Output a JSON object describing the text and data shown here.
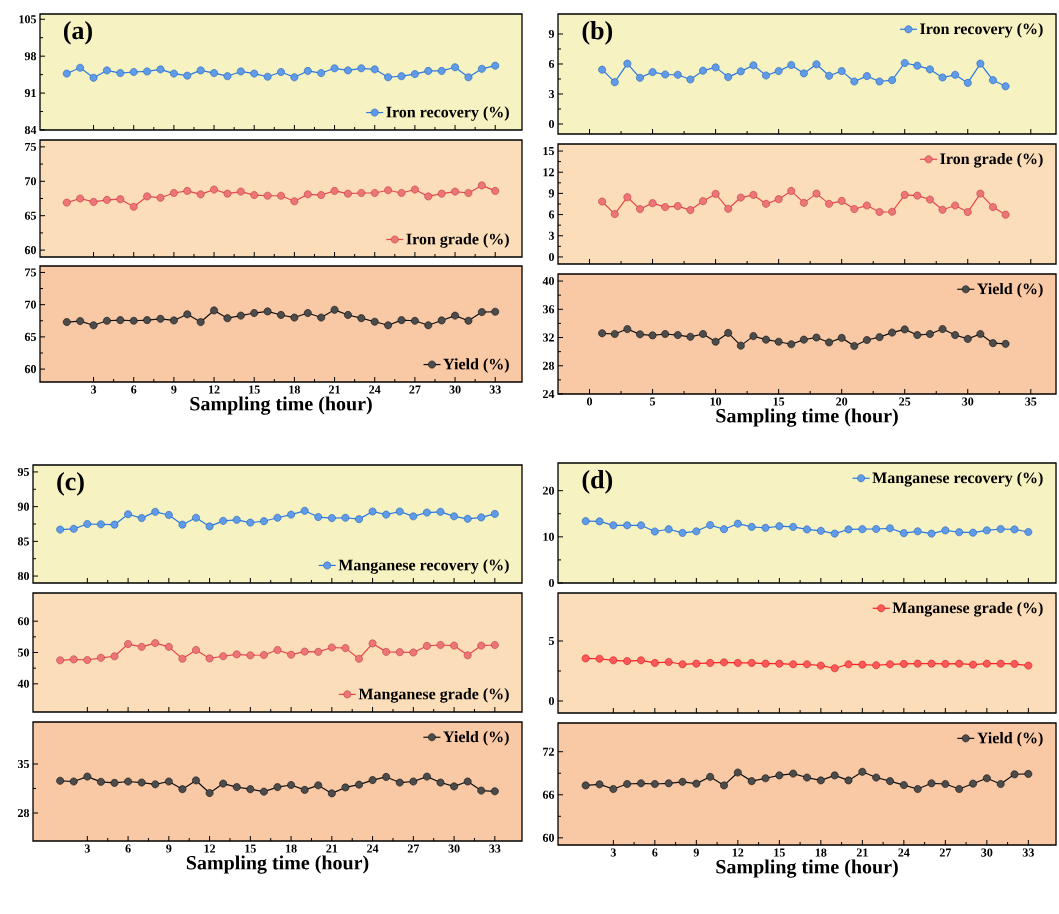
{
  "chart_data": [
    {
      "type": "line",
      "x": [
        1,
        2,
        3,
        4,
        5,
        6,
        7,
        8,
        9,
        10,
        11,
        12,
        13,
        14,
        15,
        16,
        17,
        18,
        19,
        20,
        21,
        22,
        23,
        24,
        25,
        26,
        27,
        28,
        29,
        30,
        31,
        32,
        33
      ],
      "series": [
        {
          "name": "Iron recovery (%)",
          "color": "#2a7ae2",
          "values": [
            94.7,
            95.8,
            93.9,
            95.3,
            94.8,
            95.0,
            95.1,
            95.5,
            94.7,
            94.3,
            95.3,
            94.8,
            94.2,
            95.1,
            94.7,
            94.1,
            95.0,
            94.0,
            95.2,
            94.8,
            95.7,
            95.3,
            95.7,
            95.5,
            94.0,
            94.2,
            94.6,
            95.2,
            95.2,
            95.9,
            94.0,
            95.6,
            96.2
          ]
        }
      ],
      "xlim": [
        -1,
        35
      ],
      "xticks": [
        3,
        6,
        9,
        12,
        15,
        18,
        21,
        24,
        27,
        30,
        33
      ],
      "ylim": [
        84,
        106
      ],
      "yticks": [
        84,
        91,
        98,
        105
      ],
      "tick_labels": "y",
      "legend": "bottom right",
      "marker": "circle",
      "line_style": "solid",
      "annotations": [
        "(a)"
      ]
    },
    {
      "type": "line",
      "x": [
        1,
        2,
        3,
        4,
        5,
        6,
        7,
        8,
        9,
        10,
        11,
        12,
        13,
        14,
        15,
        16,
        17,
        18,
        19,
        20,
        21,
        22,
        23,
        24,
        25,
        26,
        27,
        28,
        29,
        30,
        31,
        32,
        33
      ],
      "series": [
        {
          "name": "Iron grade (%)",
          "color": "#e8474a",
          "values": [
            66.9,
            67.5,
            67.0,
            67.3,
            67.4,
            66.3,
            67.8,
            67.6,
            68.3,
            68.6,
            68.1,
            68.8,
            68.2,
            68.5,
            68.0,
            67.9,
            67.9,
            67.1,
            68.1,
            68.0,
            68.6,
            68.2,
            68.3,
            68.3,
            68.7,
            68.3,
            68.8,
            67.8,
            68.2,
            68.5,
            68.3,
            69.4,
            68.6
          ]
        }
      ],
      "xlim": [
        -1,
        35
      ],
      "xticks": [
        3,
        6,
        9,
        12,
        15,
        18,
        21,
        24,
        27,
        30,
        33
      ],
      "ylim": [
        59,
        76
      ],
      "yticks": [
        60,
        65,
        70,
        75
      ],
      "tick_labels": "y",
      "legend": "bottom right",
      "marker": "circle",
      "line_style": "solid"
    },
    {
      "type": "line",
      "x": [
        1,
        2,
        3,
        4,
        5,
        6,
        7,
        8,
        9,
        10,
        11,
        12,
        13,
        14,
        15,
        16,
        17,
        18,
        19,
        20,
        21,
        22,
        23,
        24,
        25,
        26,
        27,
        28,
        29,
        30,
        31,
        32,
        33
      ],
      "series": [
        {
          "name": "Yield (%)",
          "color": "#111111",
          "values": [
            67.3,
            67.45,
            66.8,
            67.5,
            67.6,
            67.5,
            67.6,
            67.8,
            67.55,
            68.5,
            67.3,
            69.1,
            67.9,
            68.3,
            68.7,
            68.95,
            68.4,
            68.0,
            68.7,
            68.0,
            69.2,
            68.4,
            67.9,
            67.35,
            66.8,
            67.6,
            67.5,
            66.8,
            67.55,
            68.3,
            67.5,
            68.85,
            68.9
          ]
        }
      ],
      "xlim": [
        -1,
        35
      ],
      "xticks": [
        3,
        6,
        9,
        12,
        15,
        18,
        21,
        24,
        27,
        30,
        33
      ],
      "ylim": [
        58,
        76
      ],
      "yticks": [
        60,
        65,
        70,
        75
      ],
      "legend": "bottom right",
      "marker": "circle",
      "line_style": "solid",
      "xlabel": "Sampling time (hour)"
    },
    {
      "type": "line",
      "x": [
        1,
        2,
        3,
        4,
        5,
        6,
        7,
        8,
        9,
        10,
        11,
        12,
        13,
        14,
        15,
        16,
        17,
        18,
        19,
        20,
        21,
        22,
        23,
        24,
        25,
        26,
        27,
        28,
        29,
        30,
        31,
        32,
        33
      ],
      "series": [
        {
          "name": "Iron recovery (%)",
          "color": "#2a7ae2",
          "values": [
            5.43,
            4.18,
            6.04,
            4.62,
            5.19,
            4.95,
            4.92,
            4.45,
            5.33,
            5.66,
            4.69,
            5.26,
            5.87,
            4.85,
            5.29,
            5.9,
            5.06,
            5.97,
            4.82,
            5.29,
            4.25,
            4.79,
            4.25,
            4.38,
            6.1,
            5.83,
            5.46,
            4.65,
            4.92,
            4.11,
            6.04,
            4.38,
            3.77
          ]
        }
      ],
      "xlim": [
        -2.5,
        37
      ],
      "xticks": [
        0,
        5,
        10,
        15,
        20,
        25,
        30,
        35
      ],
      "ylim": [
        -1,
        11
      ],
      "yticks": [
        0,
        3,
        6,
        9
      ],
      "tick_labels": "y",
      "legend": "top right",
      "marker": "circle",
      "line_style": "solid",
      "annotations": [
        "(b)"
      ]
    },
    {
      "type": "line",
      "x": [
        1,
        2,
        3,
        4,
        5,
        6,
        7,
        8,
        9,
        10,
        11,
        12,
        13,
        14,
        15,
        16,
        17,
        18,
        19,
        20,
        21,
        22,
        23,
        24,
        25,
        26,
        27,
        28,
        29,
        30,
        31,
        32,
        33
      ],
      "series": [
        {
          "name": "Iron grade (%)",
          "color": "#e8474a",
          "values": [
            7.85,
            6.07,
            8.46,
            6.78,
            7.62,
            7.06,
            7.2,
            6.64,
            7.9,
            8.93,
            6.82,
            8.41,
            8.79,
            7.52,
            8.18,
            9.35,
            7.66,
            8.97,
            7.52,
            7.94,
            6.78,
            7.29,
            6.36,
            6.4,
            8.79,
            8.69,
            8.13,
            6.68,
            7.29,
            6.36,
            8.97,
            7.06,
            5.98
          ]
        }
      ],
      "xlim": [
        -2.5,
        37
      ],
      "xticks": [
        0,
        5,
        10,
        15,
        20,
        25,
        30,
        35
      ],
      "ylim": [
        -1,
        16
      ],
      "yticks": [
        0,
        3,
        6,
        9,
        12,
        15
      ],
      "tick_labels": "y",
      "legend": "top right",
      "marker": "circle",
      "line_style": "solid"
    },
    {
      "type": "line",
      "x": [
        1,
        2,
        3,
        4,
        5,
        6,
        7,
        8,
        9,
        10,
        11,
        12,
        13,
        14,
        15,
        16,
        17,
        18,
        19,
        20,
        21,
        22,
        23,
        24,
        25,
        26,
        27,
        28,
        29,
        30,
        31,
        32,
        33
      ],
      "series": [
        {
          "name": "Yield (%)",
          "color": "#111111",
          "values": [
            32.6,
            32.5,
            33.2,
            32.45,
            32.3,
            32.5,
            32.35,
            32.1,
            32.5,
            31.4,
            32.65,
            30.85,
            32.2,
            31.7,
            31.4,
            31.05,
            31.7,
            32.0,
            31.3,
            31.95,
            30.8,
            31.65,
            32.05,
            32.7,
            33.15,
            32.35,
            32.5,
            33.2,
            32.35,
            31.8,
            32.5,
            31.2,
            31.1
          ]
        }
      ],
      "xlim": [
        -2.5,
        37
      ],
      "xticks": [
        0,
        5,
        10,
        15,
        20,
        25,
        30,
        35
      ],
      "ylim": [
        24,
        41
      ],
      "yticks": [
        24,
        28,
        32,
        36,
        40
      ],
      "legend": "top right",
      "marker": "circle",
      "line_style": "solid",
      "xlabel": "Sampling time (hour)"
    },
    {
      "type": "line",
      "x": [
        1,
        2,
        3,
        4,
        5,
        6,
        7,
        8,
        9,
        10,
        11,
        12,
        13,
        14,
        15,
        16,
        17,
        18,
        19,
        20,
        21,
        22,
        23,
        24,
        25,
        26,
        27,
        28,
        29,
        30,
        31,
        32,
        33
      ],
      "series": [
        {
          "name": "Manganese recovery (%)",
          "color": "#2a7ae2",
          "values": [
            86.7,
            86.8,
            87.5,
            87.45,
            87.4,
            88.9,
            88.35,
            89.25,
            88.8,
            87.4,
            88.4,
            87.15,
            87.95,
            88.1,
            87.7,
            87.9,
            88.4,
            88.85,
            89.4,
            88.5,
            88.35,
            88.4,
            88.2,
            89.3,
            88.85,
            89.3,
            88.6,
            89.15,
            89.25,
            88.6,
            88.25,
            88.45,
            88.95
          ]
        }
      ],
      "xlim": [
        -1,
        35
      ],
      "xticks": [
        3,
        6,
        9,
        12,
        15,
        18,
        21,
        24,
        27,
        30,
        33
      ],
      "ylim": [
        79,
        96
      ],
      "yticks": [
        80,
        85,
        90,
        95
      ],
      "tick_labels": "y",
      "legend": "bottom right",
      "marker": "circle",
      "line_style": "solid",
      "annotations": [
        "(c)"
      ]
    },
    {
      "type": "line",
      "x": [
        1,
        2,
        3,
        4,
        5,
        6,
        7,
        8,
        9,
        10,
        11,
        12,
        13,
        14,
        15,
        16,
        17,
        18,
        19,
        20,
        21,
        22,
        23,
        24,
        25,
        26,
        27,
        28,
        29,
        30,
        31,
        32,
        33
      ],
      "series": [
        {
          "name": "Manganese grade (%)",
          "color": "#e8474a",
          "values": [
            47.5,
            47.8,
            47.6,
            48.3,
            48.8,
            52.7,
            51.8,
            53.0,
            51.8,
            48.0,
            50.8,
            48.1,
            48.8,
            49.4,
            49.1,
            49.2,
            50.8,
            49.3,
            50.3,
            50.2,
            51.6,
            51.4,
            48.0,
            52.9,
            50.2,
            50.1,
            50.0,
            52.1,
            52.4,
            52.2,
            49.1,
            52.2,
            52.4
          ]
        }
      ],
      "xlim": [
        -1,
        35
      ],
      "xticks": [
        3,
        6,
        9,
        12,
        15,
        18,
        21,
        24,
        27,
        30,
        33
      ],
      "ylim": [
        31,
        69
      ],
      "yticks": [
        40,
        50,
        60
      ],
      "tick_labels": "y",
      "legend": "bottom right",
      "marker": "circle",
      "line_style": "solid"
    },
    {
      "type": "line",
      "x": [
        1,
        2,
        3,
        4,
        5,
        6,
        7,
        8,
        9,
        10,
        11,
        12,
        13,
        14,
        15,
        16,
        17,
        18,
        19,
        20,
        21,
        22,
        23,
        24,
        25,
        26,
        27,
        28,
        29,
        30,
        31,
        32,
        33
      ],
      "series": [
        {
          "name": "Yield (%)",
          "color": "#111111",
          "values": [
            32.6,
            32.5,
            33.2,
            32.45,
            32.3,
            32.5,
            32.35,
            32.1,
            32.5,
            31.4,
            32.65,
            30.85,
            32.2,
            31.7,
            31.4,
            31.05,
            31.7,
            32.0,
            31.3,
            31.95,
            30.8,
            31.65,
            32.05,
            32.7,
            33.15,
            32.35,
            32.5,
            33.2,
            32.35,
            31.8,
            32.5,
            31.2,
            31.1
          ]
        }
      ],
      "xlim": [
        -1,
        35
      ],
      "xticks": [
        3,
        6,
        9,
        12,
        15,
        18,
        21,
        24,
        27,
        30,
        33
      ],
      "ylim": [
        24,
        41
      ],
      "yticks": [
        28,
        35
      ],
      "legend": "top right",
      "marker": "circle",
      "line_style": "solid",
      "xlabel": "Sampling time (hour)"
    },
    {
      "type": "line",
      "x": [
        1,
        2,
        3,
        4,
        5,
        6,
        7,
        8,
        9,
        10,
        11,
        12,
        13,
        14,
        15,
        16,
        17,
        18,
        19,
        20,
        21,
        22,
        23,
        24,
        25,
        26,
        27,
        28,
        29,
        30,
        31,
        32,
        33
      ],
      "series": [
        {
          "name": "Manganese recovery (%)",
          "color": "#2a7ae2",
          "values": [
            13.4,
            13.35,
            12.5,
            12.5,
            12.5,
            11.15,
            11.65,
            10.85,
            11.2,
            12.55,
            11.65,
            12.85,
            12.15,
            11.95,
            12.3,
            12.15,
            11.6,
            11.3,
            10.7,
            11.6,
            11.65,
            11.7,
            11.85,
            10.8,
            11.2,
            10.7,
            11.4,
            11.0,
            10.9,
            11.4,
            11.7,
            11.6,
            11.05
          ]
        }
      ],
      "xlim": [
        -1,
        35
      ],
      "xticks": [
        3,
        6,
        9,
        12,
        15,
        18,
        21,
        24,
        27,
        30,
        33
      ],
      "ylim": [
        0,
        26
      ],
      "yticks": [
        0,
        10,
        20
      ],
      "tick_labels": "y",
      "legend": "top right",
      "marker": "circle",
      "line_style": "solid",
      "annotations": [
        "(d)"
      ]
    },
    {
      "type": "line",
      "x": [
        1,
        2,
        3,
        4,
        5,
        6,
        7,
        8,
        9,
        10,
        11,
        12,
        13,
        14,
        15,
        16,
        17,
        18,
        19,
        20,
        21,
        22,
        23,
        24,
        25,
        26,
        27,
        28,
        29,
        30,
        31,
        32,
        33
      ],
      "series": [
        {
          "name": "Manganese grade (%)",
          "color": "#ff2020",
          "values": [
            3.55,
            3.52,
            3.39,
            3.33,
            3.39,
            3.17,
            3.25,
            3.06,
            3.11,
            3.17,
            3.22,
            3.17,
            3.17,
            3.11,
            3.11,
            3.06,
            3.06,
            2.95,
            2.73,
            3.06,
            3.03,
            2.98,
            3.06,
            3.09,
            3.11,
            3.11,
            3.09,
            3.11,
            3.03,
            3.11,
            3.11,
            3.09,
            2.95
          ]
        }
      ],
      "xlim": [
        -1,
        35
      ],
      "xticks": [
        3,
        6,
        9,
        12,
        15,
        18,
        21,
        24,
        27,
        30,
        33
      ],
      "ylim": [
        -1,
        9
      ],
      "yticks": [
        0,
        5
      ],
      "tick_labels": "y",
      "legend": "top right",
      "marker": "circle",
      "line_style": "solid"
    },
    {
      "type": "line",
      "x": [
        1,
        2,
        3,
        4,
        5,
        6,
        7,
        8,
        9,
        10,
        11,
        12,
        13,
        14,
        15,
        16,
        17,
        18,
        19,
        20,
        21,
        22,
        23,
        24,
        25,
        26,
        27,
        28,
        29,
        30,
        31,
        32,
        33
      ],
      "series": [
        {
          "name": "Yield (%)",
          "color": "#111111",
          "values": [
            67.3,
            67.45,
            66.8,
            67.5,
            67.6,
            67.5,
            67.6,
            67.8,
            67.55,
            68.5,
            67.3,
            69.1,
            67.9,
            68.3,
            68.7,
            68.95,
            68.4,
            68.0,
            68.7,
            68.0,
            69.2,
            68.4,
            67.9,
            67.35,
            66.8,
            67.6,
            67.5,
            66.8,
            67.55,
            68.3,
            67.5,
            68.85,
            68.9
          ]
        }
      ],
      "xlim": [
        -1,
        35
      ],
      "xticks": [
        3,
        6,
        9,
        12,
        15,
        18,
        21,
        24,
        27,
        30,
        33
      ],
      "ylim": [
        59,
        76
      ],
      "yticks": [
        60,
        66,
        72
      ],
      "legend": "top right",
      "marker": "circle",
      "line_style": "solid",
      "xlabel": "Sampling time (hour)"
    }
  ]
}
